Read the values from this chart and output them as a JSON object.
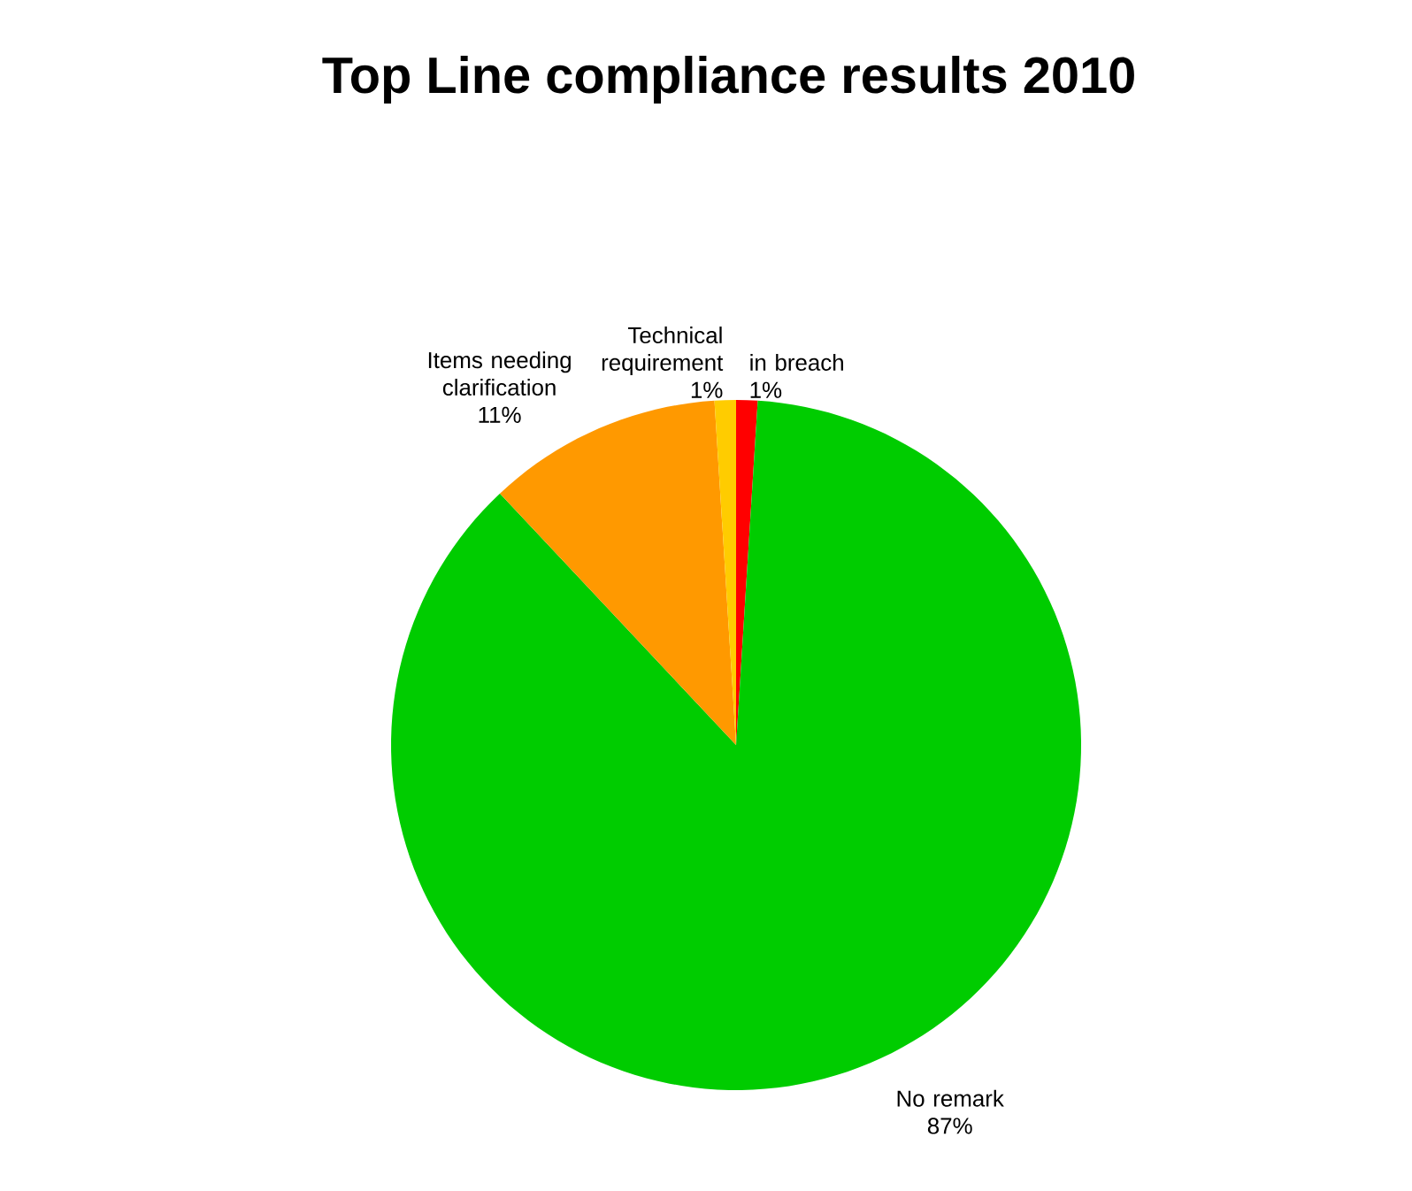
{
  "chart_data": {
    "type": "pie",
    "title": "Top Line compliance results 2010",
    "categories": [
      "in breach",
      "No remark",
      "Items needing clarification",
      "Technical requirement"
    ],
    "values": [
      1,
      87,
      11,
      1
    ],
    "value_labels": [
      "1%",
      "87%",
      "11%",
      "1%"
    ],
    "colors": [
      "#ff0000",
      "#00cc00",
      "#ff9900",
      "#ffcc00"
    ]
  }
}
